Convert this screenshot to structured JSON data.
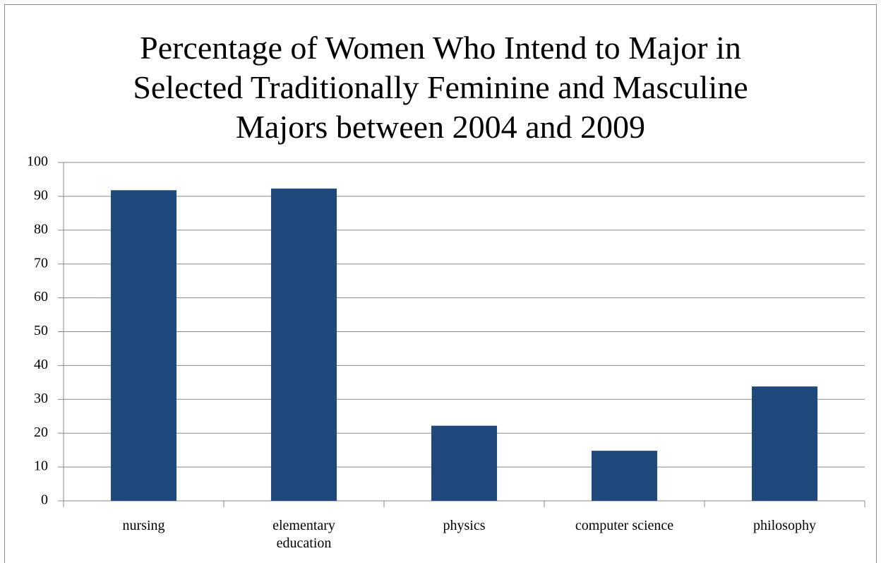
{
  "chart_data": {
    "type": "bar",
    "title": "Percentage of Women Who Intend to Major in Selected Traditionally Feminine and Masculine Majors between 2004 and 2009",
    "categories": [
      "nursing",
      "elementary education",
      "physics",
      "computer science",
      "philosophy"
    ],
    "values": [
      91.8,
      92.3,
      22.2,
      14.8,
      33.8
    ],
    "color": "#1f497d",
    "ylim": [
      0,
      100
    ],
    "yticks": [
      0,
      10,
      20,
      30,
      40,
      50,
      60,
      70,
      80,
      90,
      100
    ],
    "grid": true
  }
}
